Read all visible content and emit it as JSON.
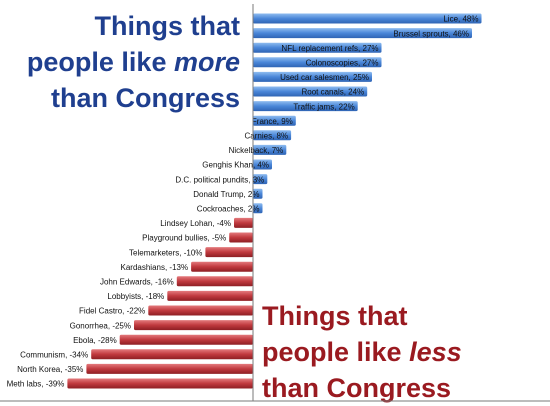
{
  "headings": {
    "more": {
      "line1": "Things that",
      "line2_prefix": "people like ",
      "line2_emph": "more",
      "line3": "than Congress",
      "color": "#1f3f8f"
    },
    "less": {
      "line1": "Things that",
      "line2_prefix": "people like ",
      "line2_emph": "less",
      "line3": "than Congress",
      "color": "#9a1a20"
    }
  },
  "chart_data": {
    "type": "bar",
    "orientation": "horizontal",
    "unit": "%",
    "xlim": [
      -42,
      50
    ],
    "colors": {
      "positive": "#4a86d8",
      "negative": "#c0393e",
      "axis": "#7a7a7a"
    },
    "categories": [
      "Lice",
      "Brussel sprouts",
      "NFL replacement refs",
      "Colonoscopies",
      "Used car salesmen",
      "Root canals",
      "Traffic jams",
      "France",
      "Carnies",
      "Nickelback",
      "Genghis Khan",
      "D.C. political pundits",
      "Donald Trump",
      "Cockroaches",
      "Lindsey Lohan",
      "Playground bullies",
      "Telemarketers",
      "Kardashians",
      "John Edwards",
      "Lobbyists",
      "Fidel Castro",
      "Gonorrhea",
      "Ebola",
      "Communism",
      "North Korea",
      "Meth labs"
    ],
    "values": [
      48,
      46,
      27,
      27,
      25,
      24,
      22,
      9,
      8,
      7,
      4,
      3,
      2,
      2,
      -4,
      -5,
      -10,
      -13,
      -16,
      -18,
      -22,
      -25,
      -28,
      -34,
      -35,
      -39
    ],
    "labels": [
      "Lice, 48%",
      "Brussel sprouts, 46%",
      "NFL replacement refs, 27%",
      "Colonoscopies, 27%",
      "Used car salesmen, 25%",
      "Root canals, 24%",
      "Traffic jams, 22%",
      "France, 9%",
      "Carnies, 8%",
      "Nickelback, 7%",
      "Genghis Khan, 4%",
      "D.C. political pundits, 3%",
      "Donald Trump, 2%",
      "Cockroaches, 2%",
      "Lindsey Lohan, -4%",
      "Playground bullies, -5%",
      "Telemarketers, -10%",
      "Kardashians, -13%",
      "John Edwards, -16%",
      "Lobbyists, -18%",
      "Fidel Castro, -22%",
      "Gonorrhea, -25%",
      "Ebola, -28%",
      "Communism, -34%",
      "North Korea, -35%",
      "Meth labs, -39%"
    ]
  }
}
